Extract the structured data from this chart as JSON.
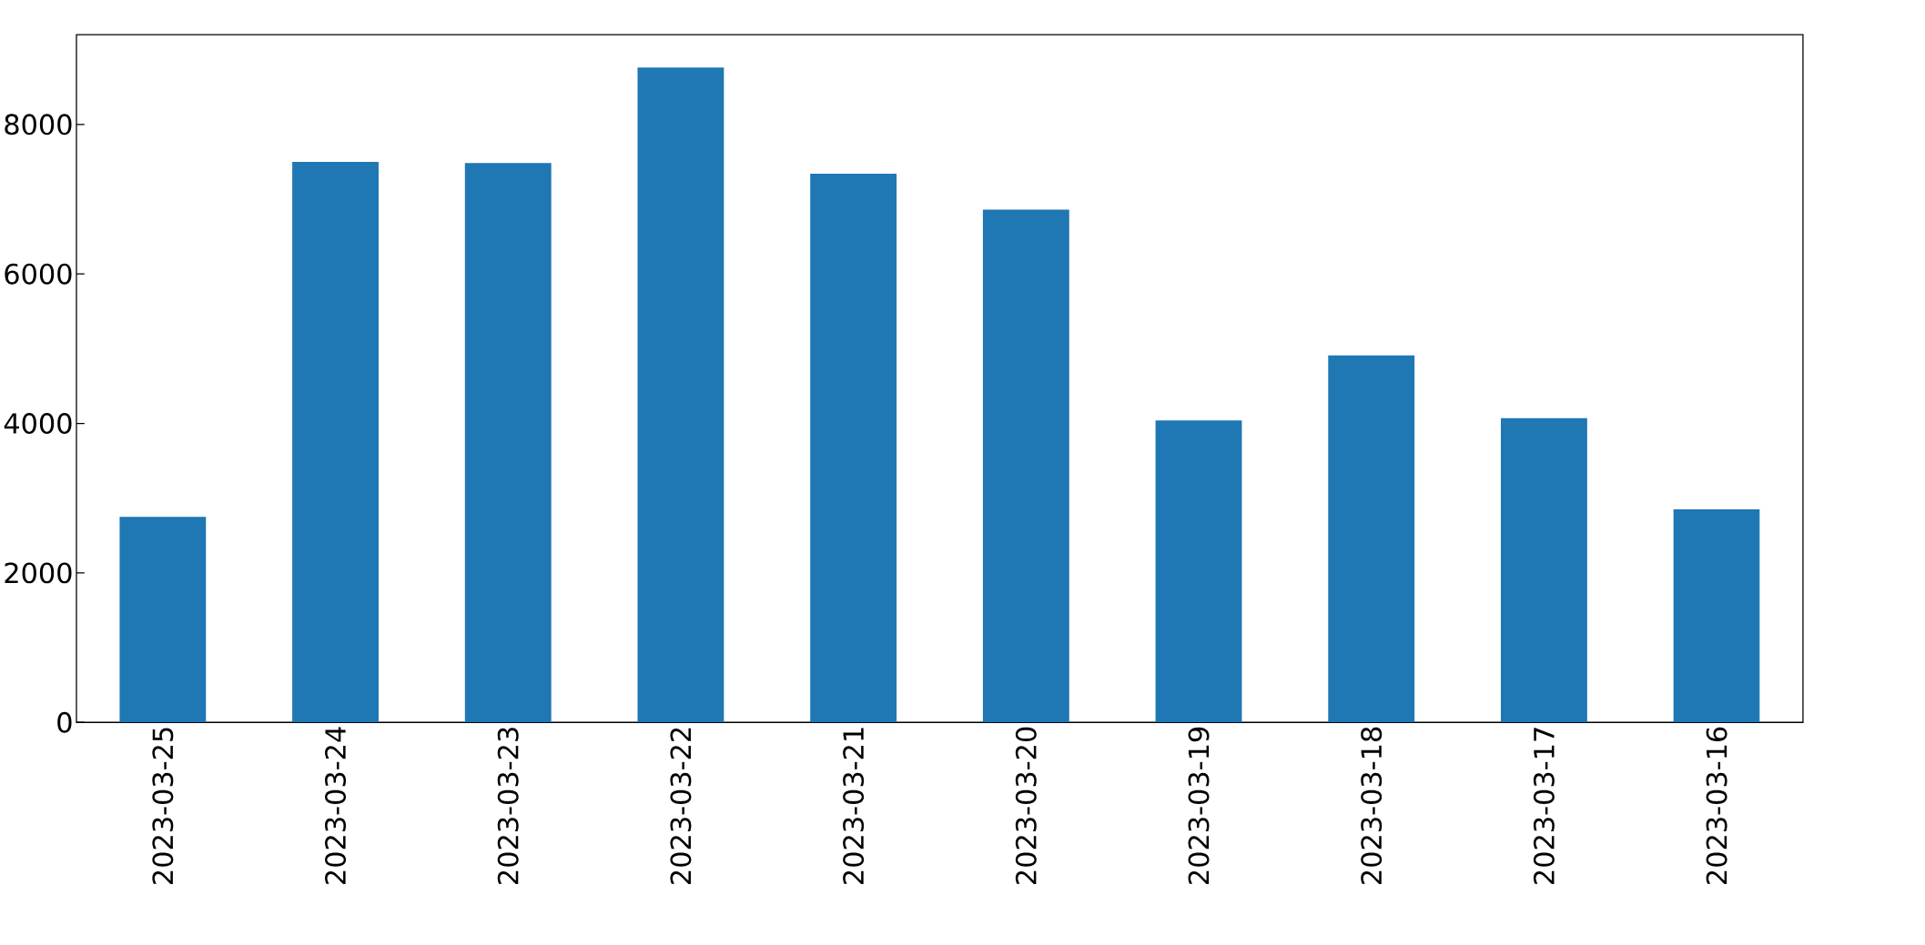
{
  "chart_data": {
    "type": "bar",
    "categories": [
      "2023-03-25",
      "2023-03-24",
      "2023-03-23",
      "2023-03-22",
      "2023-03-21",
      "2023-03-20",
      "2023-03-19",
      "2023-03-18",
      "2023-03-17",
      "2023-03-16"
    ],
    "values": [
      2750,
      7500,
      7485,
      8760,
      7340,
      6860,
      4040,
      4910,
      4070,
      2850
    ],
    "color": "#1f77b4",
    "ylim": [
      0,
      9200
    ],
    "yticks": [
      0,
      2000,
      4000,
      6000,
      8000
    ]
  }
}
